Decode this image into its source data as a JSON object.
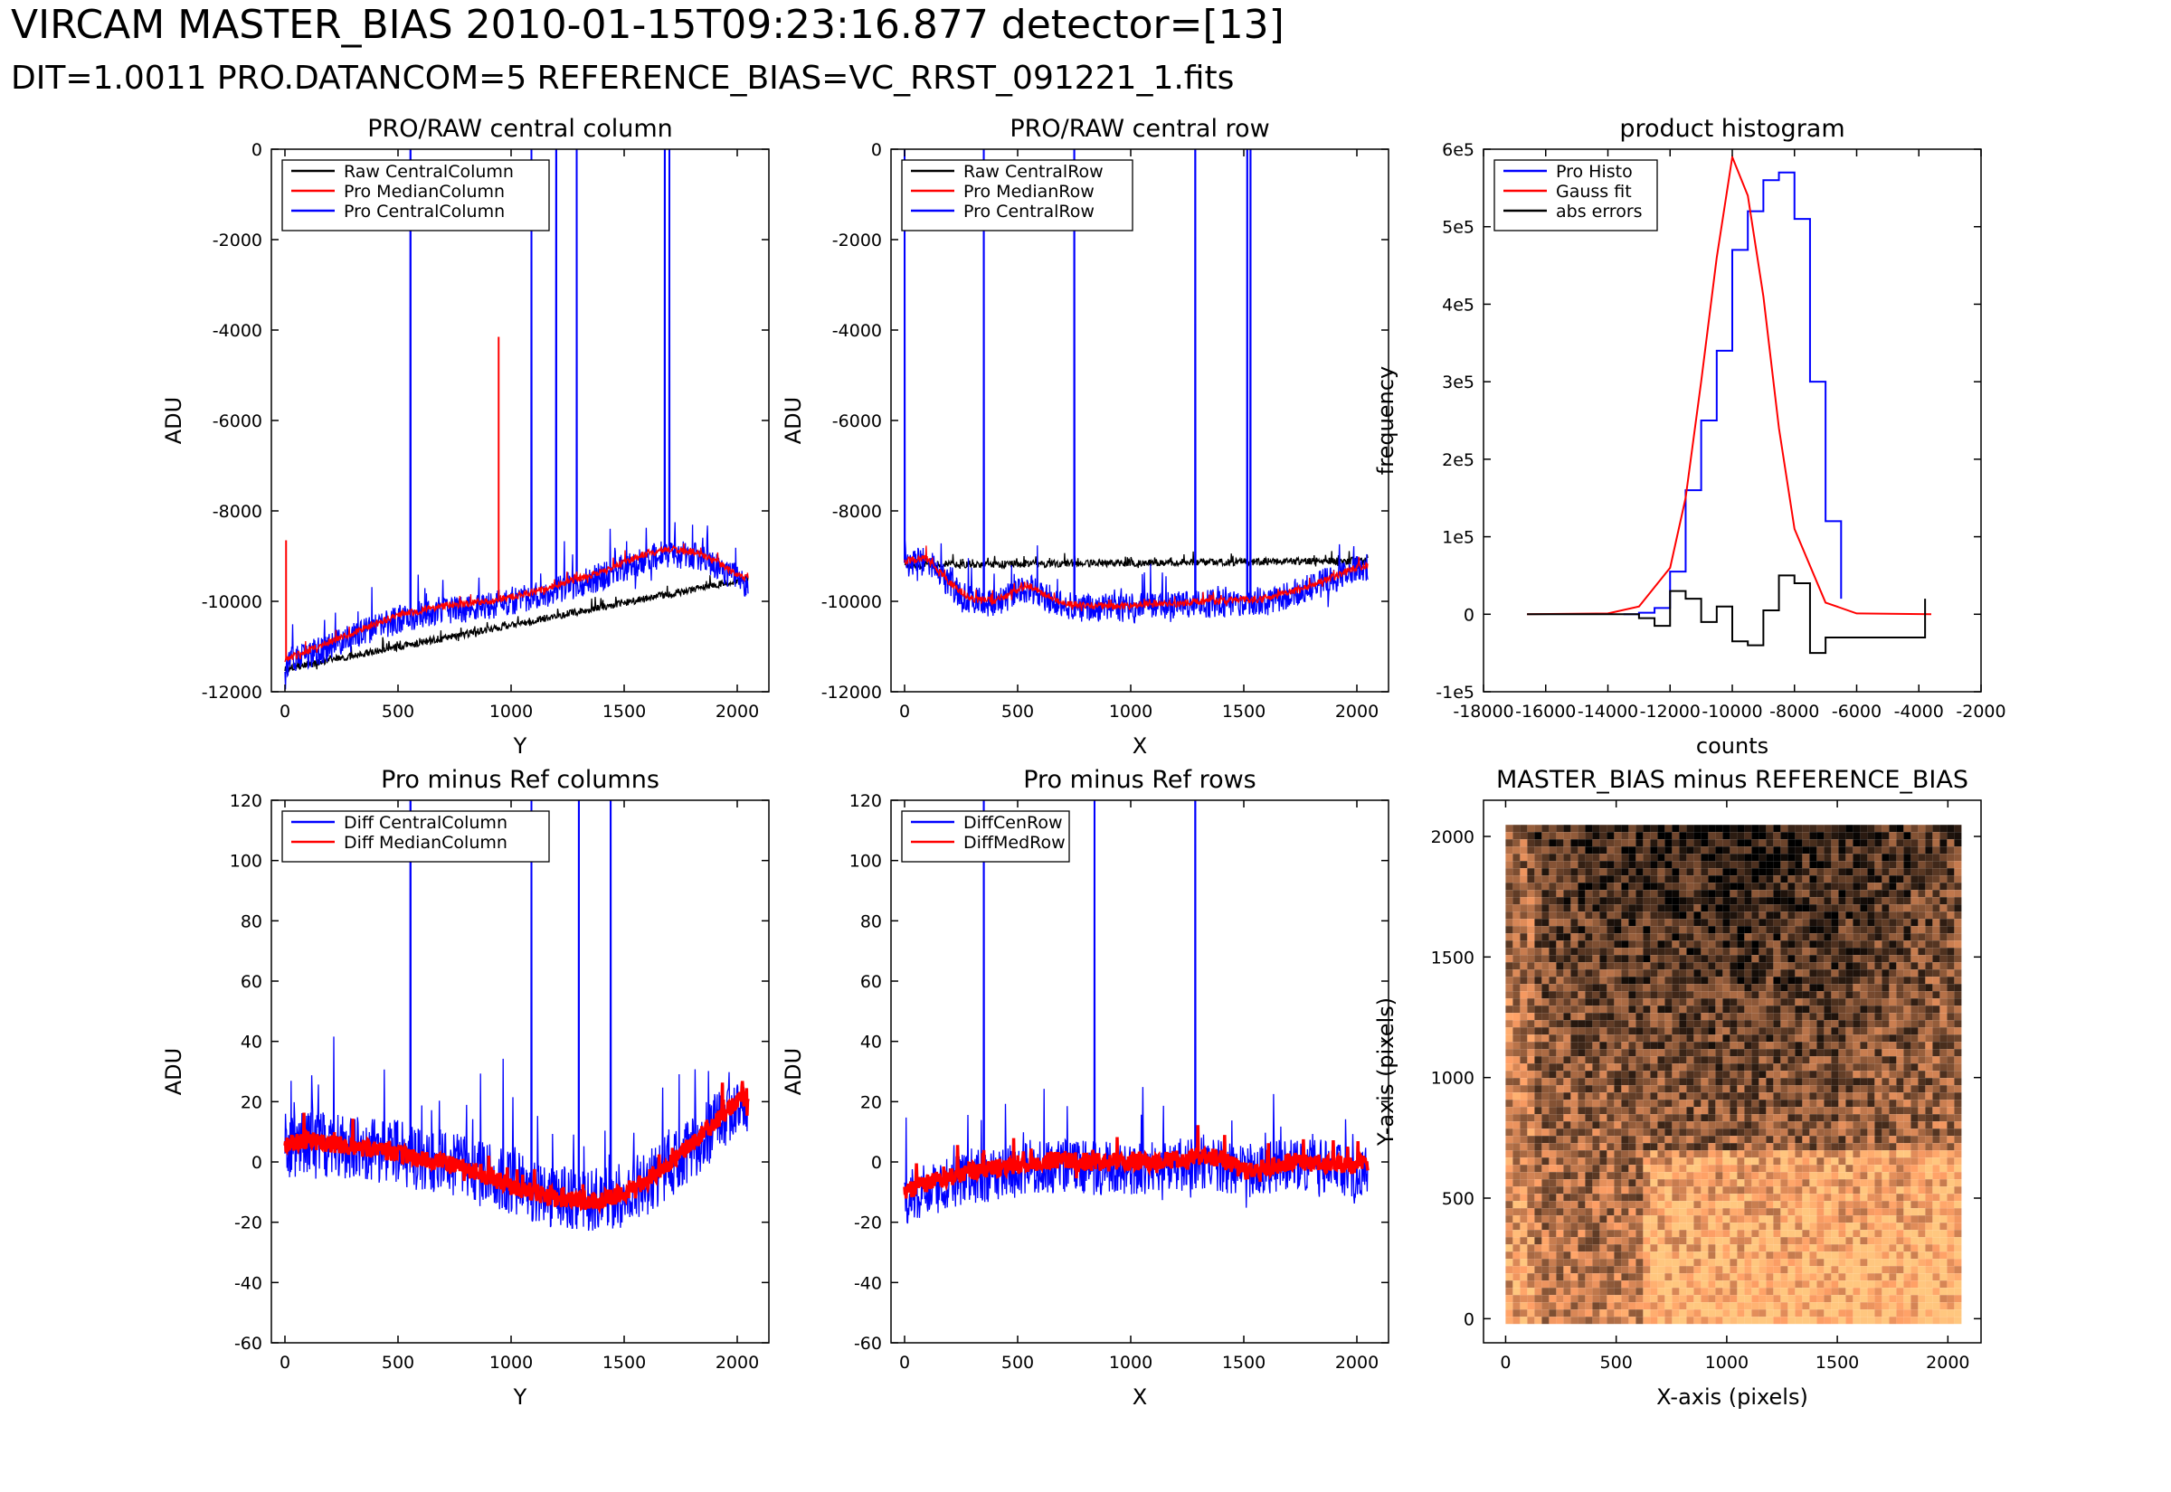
{
  "header": {
    "title": "VIRCAM MASTER_BIAS 2010-01-15T09:23:16.877 detector=[13]",
    "subtitle": "DIT=1.0011   PRO.DATANCOM=5   REFERENCE_BIAS=VC_RRST_091221_1.fits"
  },
  "colors": {
    "raw": "#000000",
    "pro_median": "#ff0000",
    "pro_central": "#0000ff",
    "gauss": "#ff0000",
    "abs_errors": "#000000"
  },
  "chart_data": [
    {
      "type": "line",
      "title": "PRO/RAW central column",
      "xlabel": "Y",
      "ylabel": "ADU",
      "xlim": [
        -60,
        2140
      ],
      "ylim": [
        -12000,
        0
      ],
      "xticks": [
        "0",
        "500",
        "1000",
        "1500",
        "2000"
      ],
      "yticks": [
        "0",
        "-2000",
        "-4000",
        "-6000",
        "-8000",
        "-10000",
        "-12000"
      ],
      "legend_position": "top-left",
      "series": [
        {
          "name": "Raw CentralColumn",
          "color": "#000000",
          "x": [
            0,
            2048
          ],
          "y": [
            -11500,
            -9500
          ]
        },
        {
          "name": "Pro MedianColumn",
          "color": "#ff0000",
          "x": [
            0,
            100,
            200,
            300,
            400,
            500,
            600,
            700,
            800,
            900,
            1000,
            1100,
            1200,
            1300,
            1400,
            1500,
            1600,
            1700,
            1800,
            1900,
            2000,
            2048
          ],
          "y": [
            -11300,
            -11100,
            -10900,
            -10700,
            -10500,
            -10300,
            -10200,
            -10100,
            -10050,
            -10000,
            -9900,
            -9800,
            -9650,
            -9500,
            -9350,
            -9150,
            -8950,
            -8850,
            -8900,
            -9100,
            -9400,
            -9500
          ]
        },
        {
          "name": "Pro CentralColumn",
          "color": "#0000ff",
          "x": [
            0,
            100,
            200,
            300,
            400,
            500,
            600,
            700,
            800,
            900,
            1000,
            1100,
            1200,
            1300,
            1400,
            1500,
            1600,
            1700,
            1800,
            1900,
            2000,
            2048
          ],
          "y": [
            -11400,
            -11200,
            -11000,
            -10800,
            -10600,
            -10400,
            -10300,
            -10200,
            -10150,
            -10100,
            -10000,
            -9900,
            -9750,
            -9600,
            -9450,
            -9250,
            -9050,
            -8950,
            -9000,
            -9200,
            -9500,
            -9600
          ]
        }
      ]
    },
    {
      "type": "line",
      "title": "PRO/RAW central row",
      "xlabel": "X",
      "ylabel": "ADU",
      "xlim": [
        -60,
        2140
      ],
      "ylim": [
        -12000,
        0
      ],
      "xticks": [
        "0",
        "500",
        "1000",
        "1500",
        "2000"
      ],
      "yticks": [
        "0",
        "-2000",
        "-4000",
        "-6000",
        "-8000",
        "-10000",
        "-12000"
      ],
      "legend_position": "top-left",
      "series": [
        {
          "name": "Raw CentralRow",
          "color": "#000000",
          "x": [
            0,
            2048
          ],
          "y": [
            -9200,
            -9100
          ]
        },
        {
          "name": "Pro MedianRow",
          "color": "#ff0000",
          "x": [
            0,
            100,
            200,
            300,
            400,
            500,
            550,
            600,
            700,
            800,
            900,
            1000,
            1100,
            1200,
            1300,
            1400,
            1500,
            1600,
            1700,
            1800,
            1900,
            2000,
            2048
          ],
          "y": [
            -9100,
            -9050,
            -9600,
            -9950,
            -10000,
            -9750,
            -9650,
            -9800,
            -10050,
            -10100,
            -10100,
            -10100,
            -10050,
            -10050,
            -10000,
            -10000,
            -9950,
            -9950,
            -9800,
            -9650,
            -9450,
            -9250,
            -9200
          ]
        },
        {
          "name": "Pro CentralRow",
          "color": "#0000ff",
          "x": [
            0,
            100,
            200,
            300,
            400,
            500,
            550,
            600,
            700,
            800,
            900,
            1000,
            1100,
            1200,
            1300,
            1400,
            1500,
            1600,
            1700,
            1800,
            1900,
            2000,
            2048
          ],
          "y": [
            -9150,
            -9100,
            -9650,
            -10000,
            -10050,
            -9800,
            -9700,
            -9850,
            -10100,
            -10150,
            -10150,
            -10150,
            -10100,
            -10100,
            -10050,
            -10050,
            -10000,
            -10000,
            -9850,
            -9700,
            -9500,
            -9300,
            -9250
          ]
        }
      ]
    },
    {
      "type": "line",
      "title": "product histogram",
      "xlabel": "counts",
      "ylabel": "frequency",
      "xlim": [
        -18000,
        -2000
      ],
      "ylim": [
        -100000,
        600000
      ],
      "xticks": [
        "-18000",
        "-16000",
        "-14000",
        "-12000",
        "-10000",
        "-8000",
        "-6000",
        "-4000",
        "-2000"
      ],
      "yticks": [
        "6e5",
        "5e5",
        "4e5",
        "3e5",
        "2e5",
        "1e5",
        "0",
        "-1e5"
      ],
      "legend_position": "top-left",
      "series": [
        {
          "name": "Pro Histo",
          "color": "#0000ff",
          "x": [
            -13500,
            -13000,
            -12500,
            -12000,
            -11500,
            -11000,
            -10500,
            -10000,
            -9500,
            -9000,
            -8500,
            -8000,
            -7500,
            -7000,
            -6500
          ],
          "y": [
            0,
            2000,
            8000,
            55000,
            160000,
            250000,
            340000,
            470000,
            520000,
            560000,
            570000,
            510000,
            300000,
            120000,
            20000
          ]
        },
        {
          "name": "Gauss fit",
          "color": "#ff0000",
          "x": [
            -16600,
            -14000,
            -13000,
            -12000,
            -11500,
            -11000,
            -10500,
            -10000,
            -9500,
            -9000,
            -8500,
            -8000,
            -7000,
            -6000,
            -3600
          ],
          "y": [
            0,
            1000,
            10000,
            60000,
            150000,
            300000,
            460000,
            590000,
            540000,
            410000,
            240000,
            110000,
            15000,
            1000,
            0
          ]
        },
        {
          "name": "abs errors",
          "color": "#000000",
          "x": [
            -16600,
            -13500,
            -13000,
            -12500,
            -12000,
            -11500,
            -11000,
            -10500,
            -10000,
            -9500,
            -9000,
            -8500,
            -8000,
            -7500,
            -7000,
            -3800
          ],
          "y": [
            0,
            0,
            -5000,
            -15000,
            30000,
            20000,
            -10000,
            10000,
            -35000,
            -40000,
            5000,
            50000,
            40000,
            -50000,
            -30000,
            0
          ]
        }
      ]
    },
    {
      "type": "line",
      "title": "Pro minus Ref columns",
      "xlabel": "Y",
      "ylabel": "ADU",
      "xlim": [
        -60,
        2140
      ],
      "ylim": [
        -60,
        120
      ],
      "xticks": [
        "0",
        "500",
        "1000",
        "1500",
        "2000"
      ],
      "yticks": [
        "120",
        "100",
        "80",
        "60",
        "40",
        "20",
        "0",
        "-20",
        "-40",
        "-60"
      ],
      "legend_position": "top-left",
      "series": [
        {
          "name": "Diff CentralColumn",
          "color": "#0000ff",
          "x": [
            0,
            100,
            200,
            300,
            400,
            500,
            600,
            700,
            800,
            900,
            1000,
            1100,
            1200,
            1300,
            1400,
            1500,
            1600,
            1700,
            1800,
            1900,
            2000,
            2048
          ],
          "y": [
            5,
            6,
            6,
            5,
            4,
            3,
            1,
            0,
            -2,
            -5,
            -7,
            -9,
            -12,
            -13,
            -13,
            -11,
            -7,
            -1,
            5,
            12,
            19,
            21
          ]
        },
        {
          "name": "Diff MedianColumn",
          "color": "#ff0000",
          "x": [
            0,
            100,
            200,
            300,
            400,
            500,
            600,
            700,
            800,
            900,
            1000,
            1100,
            1200,
            1300,
            1400,
            1500,
            1600,
            1700,
            1800,
            1900,
            2000,
            2048
          ],
          "y": [
            6,
            7,
            6,
            5,
            4,
            3,
            1,
            0,
            -2,
            -5,
            -8,
            -10,
            -12,
            -13,
            -13,
            -10,
            -6,
            0,
            6,
            13,
            20,
            22
          ]
        }
      ]
    },
    {
      "type": "line",
      "title": "Pro minus Ref rows",
      "xlabel": "X",
      "ylabel": "ADU",
      "xlim": [
        -60,
        2140
      ],
      "ylim": [
        -60,
        120
      ],
      "xticks": [
        "0",
        "500",
        "1000",
        "1500",
        "2000"
      ],
      "yticks": [
        "120",
        "100",
        "80",
        "60",
        "40",
        "20",
        "0",
        "-20",
        "-40",
        "-60"
      ],
      "legend_position": "top-left",
      "series": [
        {
          "name": "DiffCenRow",
          "color": "#0000ff",
          "x": [
            0,
            100,
            200,
            300,
            400,
            500,
            600,
            700,
            800,
            900,
            1000,
            1100,
            1200,
            1300,
            1400,
            1500,
            1600,
            1700,
            1800,
            1900,
            2000,
            2048
          ],
          "y": [
            -12,
            -9,
            -7,
            -5,
            -4,
            -3,
            -2,
            -1,
            -2,
            -2,
            -2,
            -2,
            -1,
            0,
            -1,
            -3,
            -2,
            -1,
            -1,
            -2,
            -3,
            -3
          ]
        },
        {
          "name": "DiffMedRow",
          "color": "#ff0000",
          "x": [
            0,
            100,
            200,
            300,
            400,
            500,
            600,
            700,
            800,
            900,
            1000,
            1100,
            1200,
            1300,
            1400,
            1500,
            1600,
            1700,
            1800,
            1900,
            2000,
            2048
          ],
          "y": [
            -10,
            -7,
            -5,
            -3,
            -2,
            -1,
            0,
            1,
            0,
            0,
            0,
            0,
            1,
            2,
            1,
            -3,
            -2,
            0,
            0,
            -1,
            -1,
            -1
          ]
        }
      ]
    },
    {
      "type": "heatmap",
      "title": "MASTER_BIAS minus REFERENCE_BIAS",
      "xlabel": "X-axis (pixels)",
      "ylabel": "Y-axis (pixels)",
      "xlim": [
        -100,
        2150
      ],
      "ylim": [
        -100,
        2150
      ],
      "xticks": [
        "0",
        "500",
        "1000",
        "1500",
        "2000"
      ],
      "yticks": [
        "2000",
        "1500",
        "1000",
        "500",
        "0"
      ],
      "colormap": "copper"
    }
  ]
}
